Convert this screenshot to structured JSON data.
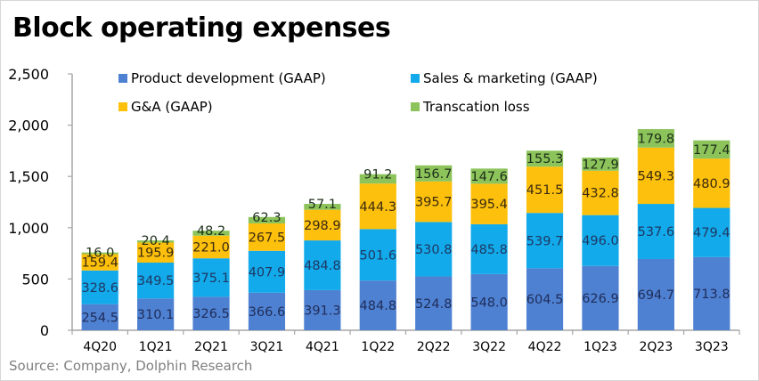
{
  "chart_data": {
    "type": "bar",
    "stacked": true,
    "title": "Block operating expenses",
    "xlabel": "",
    "ylabel": "",
    "ylim": [
      0,
      2500
    ],
    "yticks": [
      0,
      500,
      1000,
      1500,
      2000,
      2500
    ],
    "ytick_labels": [
      "0",
      "500",
      "1,000",
      "1,500",
      "2,000",
      "2,500"
    ],
    "grid": false,
    "legend_position": "top",
    "categories": [
      "4Q20",
      "1Q21",
      "2Q21",
      "3Q21",
      "4Q21",
      "1Q22",
      "2Q22",
      "3Q22",
      "4Q22",
      "1Q23",
      "2Q23",
      "3Q23"
    ],
    "series": [
      {
        "name": "Product development (GAAP)",
        "color": "#4f81d2",
        "label_color": "#1f2d5a",
        "values": [
          254.5,
          310.1,
          326.5,
          366.6,
          391.3,
          484.8,
          524.8,
          548.0,
          604.5,
          626.9,
          694.7,
          713.8
        ],
        "labels": [
          "254.5",
          "310.1",
          "326.5",
          "366.6",
          "391.3",
          "484.8",
          "524.8",
          "548.0",
          "604.5",
          "626.9",
          "694.7",
          "713.8"
        ]
      },
      {
        "name": "Sales & marketing (GAAP)",
        "color": "#12aaea",
        "label_color": "#1f3864",
        "values": [
          328.6,
          349.5,
          375.1,
          407.9,
          484.8,
          501.6,
          530.8,
          485.8,
          539.7,
          496.0,
          537.6,
          479.4
        ],
        "labels": [
          "328.6",
          "349.5",
          "375.1",
          "407.9",
          "484.8",
          "501.6",
          "530.8",
          "485.8",
          "539.7",
          "496.0",
          "537.6",
          "479.4"
        ]
      },
      {
        "name": "G&A (GAAP)",
        "color": "#fdc00c",
        "label_color": "#3b2a10",
        "values": [
          159.4,
          195.9,
          221.0,
          267.5,
          298.9,
          444.3,
          395.7,
          395.4,
          451.5,
          432.8,
          549.3,
          480.9
        ],
        "labels": [
          "159.4",
          "195.9",
          "221.0",
          "267.5",
          "298.9",
          "444.3",
          "395.7",
          "395.4",
          "451.5",
          "432.8",
          "549.3",
          "480.9"
        ]
      },
      {
        "name": "Transcation loss",
        "color": "#8cc35a",
        "label_color": "#1c2e1a",
        "values": [
          16.0,
          20.4,
          48.2,
          62.3,
          57.1,
          91.2,
          156.7,
          147.6,
          155.3,
          127.9,
          179.8,
          177.4
        ],
        "labels": [
          "16.0",
          "20.4",
          "48.2",
          "62.3",
          "57.1",
          "91.2",
          "156.7",
          "147.6",
          "155.3",
          "127.9",
          "179.8",
          "177.4"
        ]
      }
    ]
  },
  "source": "Source: Company, Dolphin Research"
}
